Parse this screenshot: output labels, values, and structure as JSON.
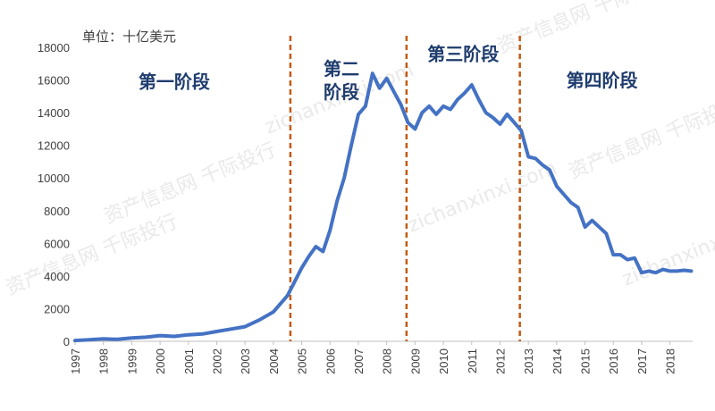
{
  "chart_data": {
    "type": "line",
    "unit_label": "单位：十亿美元",
    "ylim": [
      0,
      18000
    ],
    "y_ticks": [
      0,
      2000,
      4000,
      6000,
      8000,
      10000,
      12000,
      14000,
      16000,
      18000
    ],
    "x_ticks": [
      "1997",
      "1998",
      "1999",
      "2000",
      "2001",
      "2002",
      "2003",
      "2004",
      "2005",
      "2006",
      "2007",
      "2008",
      "2009",
      "2010",
      "2011",
      "2012",
      "2013",
      "2014",
      "2015",
      "2016",
      "2017",
      "2018"
    ],
    "xlim": [
      1997,
      2018.8
    ],
    "grid": false,
    "line_color": "#4472c4",
    "divider_color": "#c55a11",
    "dividers": [
      2004.6,
      2008.7,
      2012.7
    ],
    "stages": [
      {
        "label": "第一阶段",
        "lines": [
          "第一阶段"
        ],
        "x": 2000.5,
        "y": 15500
      },
      {
        "label": "第二阶段",
        "lines": [
          "第二",
          "阶段"
        ],
        "x": 2006.4,
        "y": 16300
      },
      {
        "label": "第三阶段",
        "lines": [
          "第三阶段"
        ],
        "x": 2010.7,
        "y": 17200
      },
      {
        "label": "第四阶段",
        "lines": [
          "第四阶段"
        ],
        "x": 2015.6,
        "y": 15600
      }
    ],
    "series": [
      {
        "x": [
          1997.0,
          1997.5,
          1998.0,
          1998.5,
          1999.0,
          1999.5,
          2000.0,
          2000.5,
          2001.0,
          2001.5,
          2002.0,
          2002.5,
          2003.0,
          2003.5,
          2004.0,
          2004.5,
          2005.0,
          2005.25,
          2005.5,
          2005.75,
          2006.0,
          2006.25,
          2006.5,
          2006.75,
          2007.0,
          2007.25,
          2007.5,
          2007.75,
          2008.0,
          2008.25,
          2008.5,
          2008.75,
          2009.0,
          2009.25,
          2009.5,
          2009.75,
          2010.0,
          2010.25,
          2010.5,
          2010.75,
          2011.0,
          2011.25,
          2011.5,
          2011.75,
          2012.0,
          2012.25,
          2012.5,
          2012.75,
          2013.0,
          2013.25,
          2013.5,
          2013.75,
          2014.0,
          2014.25,
          2014.5,
          2014.75,
          2015.0,
          2015.25,
          2015.5,
          2015.75,
          2016.0,
          2016.25,
          2016.5,
          2016.75,
          2017.0,
          2017.25,
          2017.5,
          2017.75,
          2018.0,
          2018.25,
          2018.5,
          2018.75
        ],
        "values": [
          50,
          100,
          150,
          120,
          200,
          250,
          350,
          300,
          400,
          450,
          600,
          750,
          900,
          1300,
          1800,
          2800,
          4500,
          5200,
          5800,
          5500,
          6800,
          8600,
          10000,
          12000,
          13900,
          14400,
          16400,
          15500,
          16100,
          15300,
          14500,
          13400,
          13000,
          14000,
          14400,
          13900,
          14400,
          14200,
          14800,
          15200,
          15700,
          14800,
          14000,
          13700,
          13300,
          13900,
          13400,
          12900,
          11300,
          11200,
          10800,
          10500,
          9500,
          9000,
          8500,
          8200,
          7000,
          7400,
          7000,
          6600,
          5300,
          5300,
          5000,
          5100,
          4200,
          4300,
          4200,
          4400,
          4300,
          4300,
          4350,
          4300
        ]
      }
    ]
  },
  "watermarks": [
    "资产信息网 千际投行",
    "zichanxinxi.com"
  ]
}
